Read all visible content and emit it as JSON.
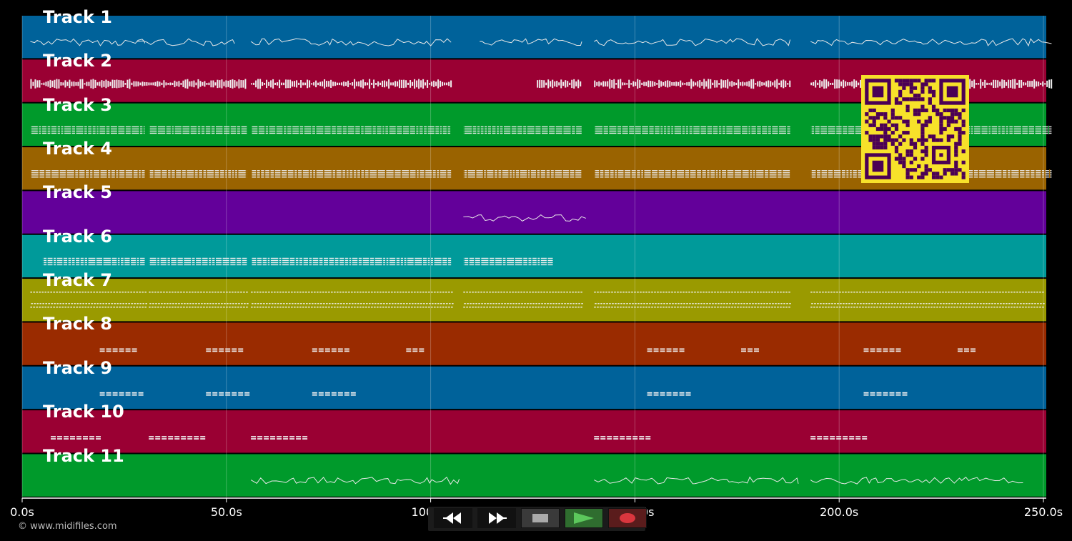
{
  "tracks": [
    {
      "name": "Track 1",
      "color": "#00629a",
      "pattern": "melody",
      "segments": [
        [
          2,
          30
        ],
        [
          28,
          52
        ],
        [
          56,
          105
        ],
        [
          112,
          137
        ],
        [
          140,
          188
        ],
        [
          193,
          252
        ]
      ]
    },
    {
      "name": "Track 2",
      "color": "#9a0033",
      "pattern": "dense",
      "segments": [
        [
          2,
          55
        ],
        [
          56,
          105
        ],
        [
          126,
          137
        ],
        [
          140,
          188
        ],
        [
          193,
          252
        ]
      ]
    },
    {
      "name": "Track 3",
      "color": "#009a2b",
      "pattern": "chords",
      "segments": [
        [
          2,
          30
        ],
        [
          31,
          55
        ],
        [
          56,
          105
        ],
        [
          108,
          137
        ],
        [
          140,
          188
        ],
        [
          193,
          252
        ]
      ]
    },
    {
      "name": "Track 4",
      "color": "#9a6300",
      "pattern": "chords",
      "segments": [
        [
          2,
          30
        ],
        [
          31,
          55
        ],
        [
          56,
          105
        ],
        [
          108,
          137
        ],
        [
          140,
          188
        ],
        [
          193,
          252
        ]
      ]
    },
    {
      "name": "Track 5",
      "color": "#63009a",
      "pattern": "melody",
      "segments": [
        [
          108,
          138
        ]
      ]
    },
    {
      "name": "Track 6",
      "color": "#009a9a",
      "pattern": "chords",
      "segments": [
        [
          5,
          30
        ],
        [
          31,
          55
        ],
        [
          56,
          105
        ],
        [
          108,
          130
        ]
      ]
    },
    {
      "name": "Track 7",
      "color": "#9a9a00",
      "pattern": "dots",
      "segments": [
        [
          2,
          30
        ],
        [
          31,
          55
        ],
        [
          56,
          105
        ],
        [
          108,
          137
        ],
        [
          140,
          188
        ],
        [
          193,
          250
        ]
      ]
    },
    {
      "name": "Track 8",
      "color": "#9a2b00",
      "pattern": "sparse",
      "segments": [
        [
          19,
          28
        ],
        [
          45,
          54
        ],
        [
          71,
          79
        ],
        [
          94,
          98
        ],
        [
          153,
          161
        ],
        [
          176,
          180
        ],
        [
          206,
          214
        ],
        [
          229,
          233
        ]
      ]
    },
    {
      "name": "Track 9",
      "color": "#00629a",
      "pattern": "sparse",
      "segments": [
        [
          19,
          30
        ],
        [
          45,
          55
        ],
        [
          71,
          81
        ],
        [
          153,
          164
        ],
        [
          206,
          216
        ]
      ]
    },
    {
      "name": "Track 10",
      "color": "#9a0033",
      "pattern": "sparse",
      "segments": [
        [
          7,
          19
        ],
        [
          31,
          44
        ],
        [
          56,
          70
        ],
        [
          140,
          153
        ],
        [
          193,
          206
        ]
      ]
    },
    {
      "name": "Track 11",
      "color": "#009a2b",
      "pattern": "melody",
      "segments": [
        [
          56,
          107
        ],
        [
          140,
          190
        ],
        [
          193,
          245
        ]
      ]
    }
  ],
  "axis": {
    "labels": [
      "0.0s",
      "50.0s",
      "100.0s",
      "150.0s",
      "200.0s",
      "250.0s"
    ],
    "tick_values": [
      0,
      50,
      100,
      150,
      200,
      250
    ],
    "min": 0,
    "max": 250
  },
  "credit": "© www.midifiles.com",
  "controls": {
    "rewind_icon": "rewind-icon",
    "fast_forward_icon": "fast-forward-icon",
    "stop_icon": "stop-icon",
    "play_icon": "play-icon",
    "record_icon": "record-icon"
  },
  "colors": {
    "background": "#000000",
    "qr_fg": "#4b0055",
    "qr_bg": "#f7e12a",
    "play_bg": "#2f6d2f",
    "play_icon": "#5cc85c",
    "record_bg": "#5a1c1c",
    "record_icon": "#d9363e"
  }
}
